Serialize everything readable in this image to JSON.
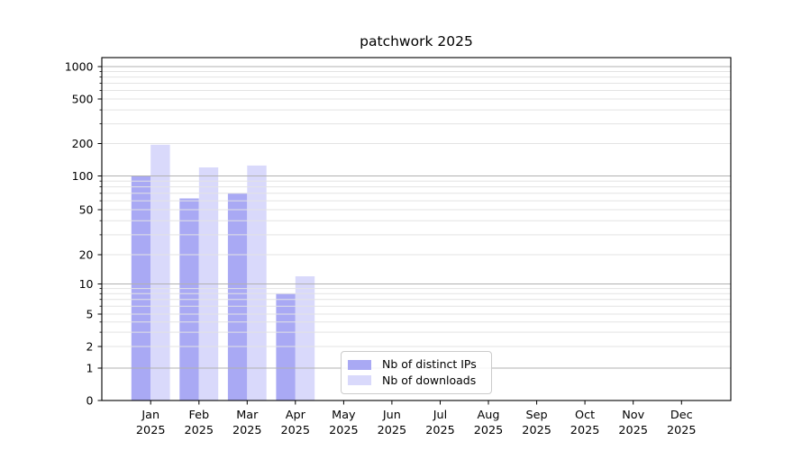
{
  "chart_data": {
    "type": "bar",
    "title": "patchwork 2025",
    "x_categories": [
      "Jan",
      "Feb",
      "Mar",
      "Apr",
      "May",
      "Jun",
      "Jul",
      "Aug",
      "Sep",
      "Oct",
      "Nov",
      "Dec"
    ],
    "x_year": "2025",
    "y_axis": {
      "scale": "symlog",
      "ticks": [
        0,
        1,
        2,
        5,
        10,
        20,
        50,
        100,
        200,
        500,
        1000
      ],
      "top_value": 1200
    },
    "grid": true,
    "legend_position": "lower center",
    "series": [
      {
        "name": "Nb of distinct IPs",
        "color": "#a9a9f4",
        "values": [
          100,
          63,
          70,
          8,
          null,
          null,
          null,
          null,
          null,
          null,
          null,
          null
        ]
      },
      {
        "name": "Nb of downloads",
        "color": "#d9d9fb",
        "values": [
          195,
          120,
          125,
          12,
          null,
          null,
          null,
          null,
          null,
          null,
          null,
          null
        ]
      }
    ]
  },
  "colors": {
    "grid_major": "#b1b1b1",
    "grid_minor": "#e3e3e3",
    "axis": "#000000",
    "legend_border": "#cbcbcb"
  }
}
